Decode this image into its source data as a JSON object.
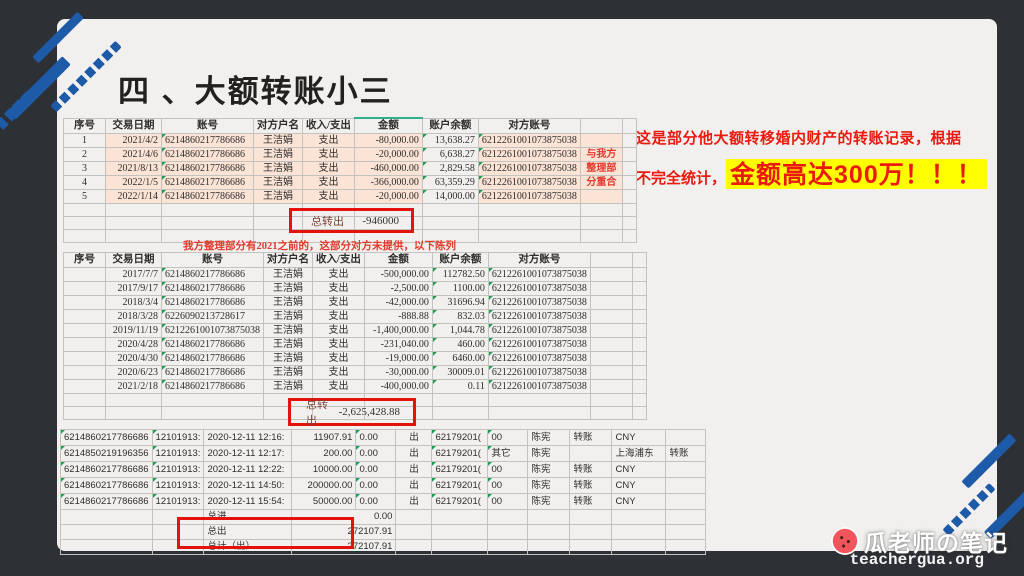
{
  "slide": {
    "title": "四 、大额转账小三",
    "annotation": {
      "line1": "这是部分他大额转移婚内财产的转账记录，根据",
      "line2_prefix": "不完全统计，",
      "line2_highlight": "金额高达300万！！！"
    },
    "note_between_tables": "我方整理部分有2021之前的，这部分对方未提供，以下陈列"
  },
  "sheet": {
    "headers": [
      "序号",
      "交易日期",
      "账号",
      "对方户名",
      "收入/支出",
      "金额",
      "账户余额",
      "对方账号",
      "",
      ""
    ]
  },
  "table1": {
    "rows": [
      [
        "1",
        "2021/4/2",
        "6214860217786686",
        "王洁娟",
        "支出",
        "-80,000.00",
        "13,638.27",
        "6212261001073875038",
        "",
        ""
      ],
      [
        "2",
        "2021/4/6",
        "6214860217786686",
        "王洁娟",
        "支出",
        "-20,000.00",
        "6,638.27",
        "6212261001073875038",
        "与我方",
        ""
      ],
      [
        "3",
        "2021/8/13",
        "6214860217786686",
        "王洁娟",
        "支出",
        "-460,000.00",
        "2,829.58",
        "6212261001073875038",
        "整理部",
        ""
      ],
      [
        "4",
        "2022/1/5",
        "6214860217786686",
        "王洁娟",
        "支出",
        "-366,000.00",
        "63,359.29",
        "6212261001073875038",
        "分重合",
        ""
      ],
      [
        "5",
        "2022/1/14",
        "6214860217786686",
        "王洁娟",
        "支出",
        "-20,000.00",
        "14,000.00",
        "6212261001073875038",
        "",
        ""
      ]
    ],
    "total_label": "总转出",
    "total_value": "-946000"
  },
  "table2": {
    "rows": [
      [
        "",
        "2017/7/7",
        "6214860217786686",
        "王洁娟",
        "支出",
        "-500,000.00",
        "112782.50",
        "6212261001073875038",
        "",
        ""
      ],
      [
        "",
        "2017/9/17",
        "6214860217786686",
        "王洁娟",
        "支出",
        "-2,500.00",
        "1100.00",
        "6212261001073875038",
        "",
        ""
      ],
      [
        "",
        "2018/3/4",
        "6214860217786686",
        "王洁娟",
        "支出",
        "-42,000.00",
        "31696.94",
        "6212261001073875038",
        "",
        ""
      ],
      [
        "",
        "2018/3/28",
        "6226090213728617",
        "王洁娟",
        "支出",
        "-888.88",
        "832.03",
        "6212261001073875038",
        "",
        ""
      ],
      [
        "",
        "2019/11/19",
        "6212261001073875038",
        "王洁娟",
        "支出",
        "-1,400,000.00",
        "1,044.78",
        "6212261001073875038",
        "",
        ""
      ],
      [
        "",
        "2020/4/28",
        "6214860217786686",
        "王洁娟",
        "支出",
        "-231,040.00",
        "460.00",
        "6212261001073875038",
        "",
        ""
      ],
      [
        "",
        "2020/4/30",
        "6214860217786686",
        "王洁娟",
        "支出",
        "-19,000.00",
        "6460.00",
        "6212261001073875038",
        "",
        ""
      ],
      [
        "",
        "2020/6/23",
        "6214860217786686",
        "王洁娟",
        "支出",
        "-30,000.00",
        "30009.01",
        "6212261001073875038",
        "",
        ""
      ],
      [
        "",
        "2021/2/18",
        "6214860217786686",
        "王洁娟",
        "支出",
        "-400,000.00",
        "0.11",
        "6212261001073875038",
        "",
        ""
      ]
    ],
    "total_label": "总转出",
    "total_value": "-2,625,428.88"
  },
  "table3": {
    "rows": [
      [
        "6214860217786686",
        "12101913:",
        "2020-12-11 12:16:",
        "11907.91",
        "0.00",
        "出",
        "62179201(",
        "00",
        "陈宪",
        "转账",
        "CNY",
        ""
      ],
      [
        "6214850219196356",
        "12101913:",
        "2020-12-11 12:17:",
        "200.00",
        "0.00",
        "出",
        "62179201(",
        "其它",
        "陈宪",
        "",
        "上海浦东",
        "转账"
      ],
      [
        "6214860217786686",
        "12101913:",
        "2020-12-11 12:22:",
        "10000.00",
        "0.00",
        "出",
        "62179201(",
        "00",
        "陈宪",
        "转账",
        "CNY",
        ""
      ],
      [
        "6214860217786686",
        "12101913:",
        "2020-12-11 14:50:",
        "200000.00",
        "0.00",
        "出",
        "62179201(",
        "00",
        "陈宪",
        "转账",
        "CNY",
        ""
      ],
      [
        "6214860217786686",
        "12101913:",
        "2020-12-11 15:54:",
        "50000.00",
        "0.00",
        "出",
        "62179201(",
        "00",
        "陈宪",
        "转账",
        "CNY",
        ""
      ]
    ],
    "summary": {
      "in_label": "总进",
      "in_value": "0.00",
      "out_label": "总出",
      "out_value": "272107.91",
      "total_label": "总计（出）",
      "total_value": "272107.91"
    }
  },
  "watermark": {
    "brand": "瓜老师の笔记",
    "site": "teachergua.org",
    "icon": "watermelon-icon"
  },
  "colors": {
    "background_dark": "#2d3034",
    "card": "#f1f0ee",
    "accent_red": "#e3120b",
    "annotation_red": "#ea1a0f",
    "highlight_yellow": "#ffff00",
    "row_peach": "#fbe3d6",
    "stripe_blue": "#1d5aa8",
    "triangle_green": "#1f9d55"
  }
}
